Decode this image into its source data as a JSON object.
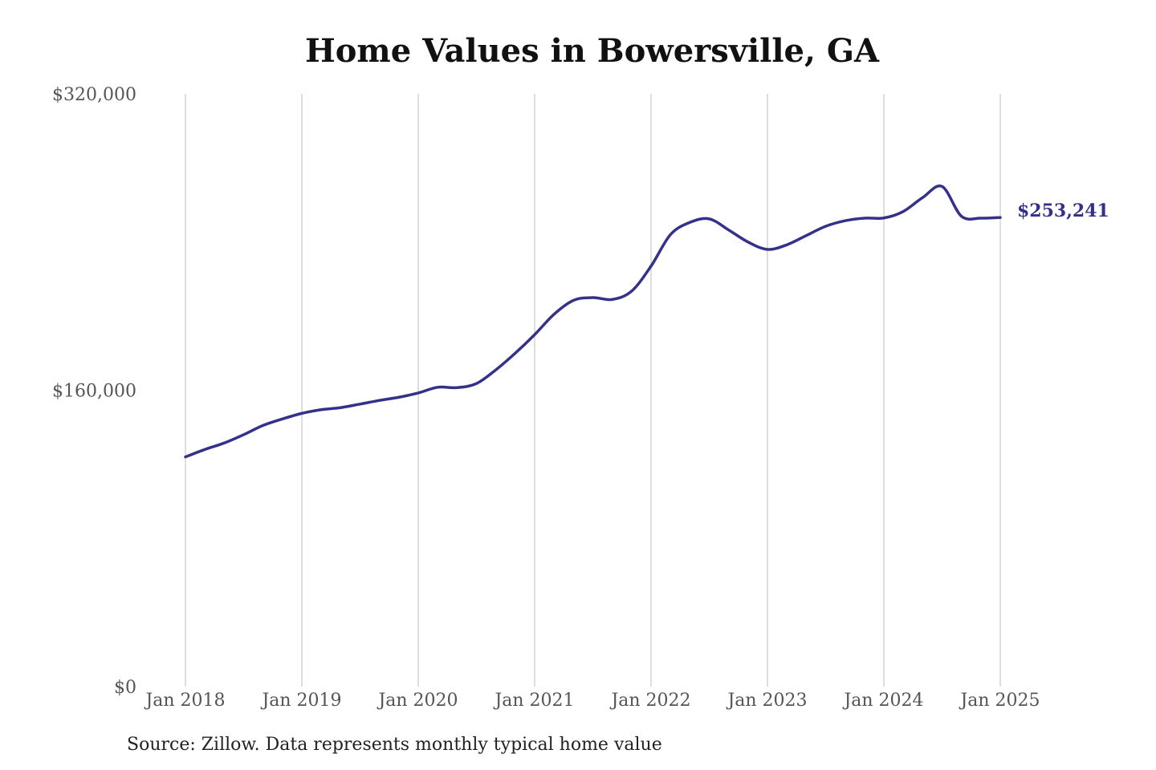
{
  "source_note": "Source: Zillow. Data represents monthly typical home value",
  "colors": {
    "line": "#34318a",
    "grid": "#bdbdbd",
    "background": "#ffffff"
  },
  "chart_data": {
    "type": "line",
    "title": "Home Values in Bowersville, GA",
    "xlabel": "",
    "ylabel": "",
    "ylim": [
      0,
      320000
    ],
    "y_ticks": [
      {
        "value": 0,
        "label": "$0"
      },
      {
        "value": 160000,
        "label": "$160,000"
      },
      {
        "value": 320000,
        "label": "$320,000"
      }
    ],
    "x_ticks": [
      {
        "date": "2018-01",
        "label": "Jan 2018"
      },
      {
        "date": "2019-01",
        "label": "Jan 2019"
      },
      {
        "date": "2020-01",
        "label": "Jan 2020"
      },
      {
        "date": "2021-01",
        "label": "Jan 2021"
      },
      {
        "date": "2022-01",
        "label": "Jan 2022"
      },
      {
        "date": "2023-01",
        "label": "Jan 2023"
      },
      {
        "date": "2024-01",
        "label": "Jan 2024"
      },
      {
        "date": "2025-01",
        "label": "Jan 2025"
      }
    ],
    "grid": {
      "vertical": true,
      "horizontal": false
    },
    "end_label": "$253,241",
    "series": [
      {
        "x": [
          "2018-01",
          "2018-03",
          "2018-05",
          "2018-07",
          "2018-09",
          "2018-11",
          "2019-01",
          "2019-03",
          "2019-05",
          "2019-07",
          "2019-09",
          "2019-11",
          "2020-01",
          "2020-03",
          "2020-05",
          "2020-07",
          "2020-09",
          "2020-11",
          "2021-01",
          "2021-03",
          "2021-05",
          "2021-07",
          "2021-09",
          "2021-11",
          "2022-01",
          "2022-03",
          "2022-05",
          "2022-07",
          "2022-09",
          "2022-11",
          "2023-01",
          "2023-03",
          "2023-05",
          "2023-07",
          "2023-09",
          "2023-11",
          "2024-01",
          "2024-03",
          "2024-05",
          "2024-07",
          "2024-09",
          "2024-11",
          "2025-01"
        ],
        "values": [
          124000,
          128000,
          131500,
          136000,
          141000,
          144500,
          147500,
          149500,
          150600,
          152500,
          154500,
          156200,
          158500,
          161600,
          161400,
          163600,
          171000,
          180000,
          190000,
          201000,
          208500,
          210000,
          209000,
          213500,
          227000,
          244000,
          250600,
          252500,
          246500,
          240000,
          236000,
          238500,
          243500,
          248500,
          251500,
          252900,
          253000,
          256500,
          264000,
          270000,
          253900,
          252900,
          253241
        ]
      }
    ]
  }
}
